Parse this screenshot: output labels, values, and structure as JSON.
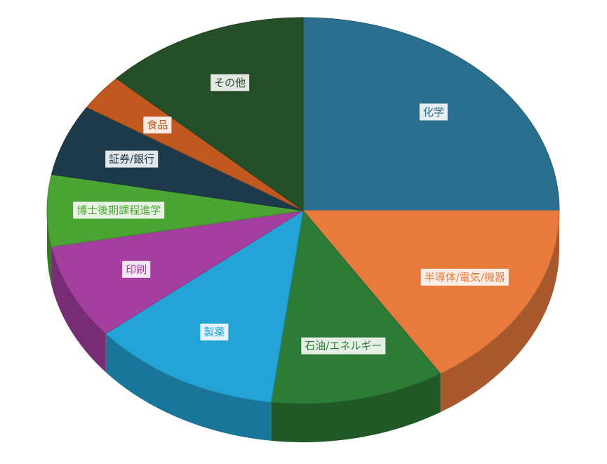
{
  "chart_data": {
    "type": "pie3d",
    "categories": [
      "化学",
      "半導体/電気/機器",
      "石油/エネルギー",
      "製薬",
      "印刷",
      "博士後期課程進学",
      "証券/銀行",
      "食品",
      "その他"
    ],
    "values": [
      25,
      16,
      11,
      12,
      8,
      6,
      6,
      3,
      13
    ],
    "colors": [
      "#2b6f8e",
      "#e87a3e",
      "#2e7a37",
      "#24a3d6",
      "#a43fa0",
      "#4aa534",
      "#1d3a4b",
      "#c0581f",
      "#254f29"
    ]
  }
}
